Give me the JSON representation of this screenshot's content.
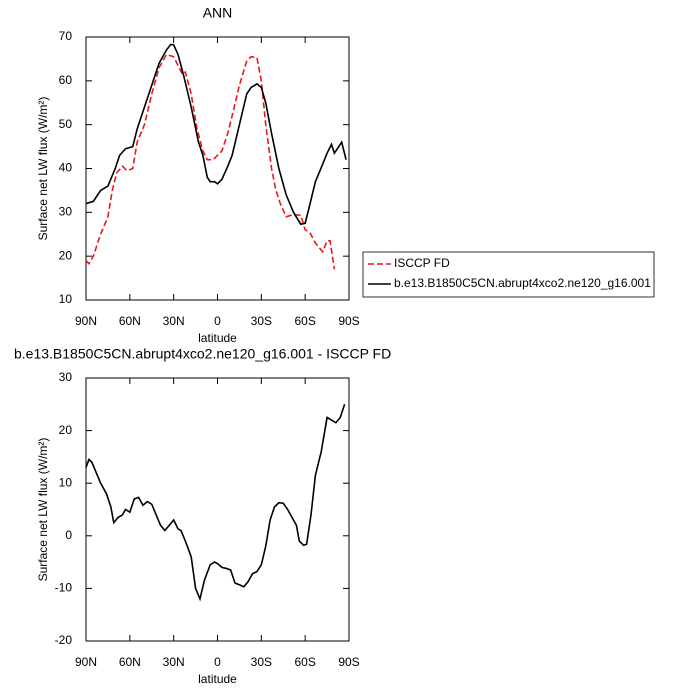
{
  "chart_data": [
    {
      "type": "line",
      "title": "ANN",
      "xlabel": "latitude",
      "ylabel": "Surface net LW flux (W/m²)",
      "xlim": [
        90,
        -90
      ],
      "xticks": [
        {
          "value": 90,
          "label": "90N"
        },
        {
          "value": 60,
          "label": "60N"
        },
        {
          "value": 30,
          "label": "30N"
        },
        0,
        {
          "value": -30,
          "label": "30S"
        },
        {
          "value": -60,
          "label": "60S"
        },
        {
          "value": -90,
          "label": "90S"
        }
      ],
      "ylim": [
        10,
        70
      ],
      "yticks": [
        10,
        20,
        30,
        40,
        50,
        60,
        70
      ],
      "legend": "outside-right",
      "series": [
        {
          "name": "ISCCP FD",
          "color": "#e8191c",
          "line_style": "dashed",
          "x": [
            90,
            88,
            85,
            80,
            75,
            72,
            69,
            65,
            62,
            58,
            55,
            50,
            45,
            40,
            35,
            30,
            27,
            24,
            22,
            18,
            14,
            10,
            7,
            3,
            0,
            -3,
            -7,
            -10,
            -15,
            -20,
            -23,
            -27,
            -30,
            -33,
            -37,
            -40,
            -43,
            -47,
            -52,
            -57,
            -60,
            -63,
            -67,
            -72,
            -75,
            -77,
            -80
          ],
          "values": [
            19,
            18.3,
            20,
            25,
            29,
            35,
            39,
            40.5,
            39.5,
            40,
            46,
            50,
            57,
            63,
            66,
            65.5,
            63.5,
            61.5,
            62,
            57,
            49,
            44,
            42,
            42,
            43,
            44,
            48,
            52,
            59,
            64.5,
            65.5,
            65.3,
            60,
            50,
            40,
            35,
            32,
            29,
            29.5,
            29.3,
            26,
            25.5,
            23,
            21,
            23.5,
            23.5,
            17
          ]
        },
        {
          "name": "b.e13.B1850C5CN.abrupt4xco2.ne120_g16.001",
          "color": "#000000",
          "line_style": "solid",
          "x": [
            90,
            85,
            80,
            75,
            70,
            67,
            63,
            58,
            55,
            50,
            45,
            40,
            35,
            32,
            30,
            27,
            23,
            18,
            13,
            10,
            7,
            5,
            2,
            0,
            -3,
            -7,
            -10,
            -15,
            -20,
            -23,
            -27,
            -30,
            -33,
            -37,
            -42,
            -47,
            -52,
            -57,
            -60,
            -63,
            -67,
            -72,
            -75,
            -78,
            -80,
            -83,
            -85,
            -88
          ],
          "values": [
            32,
            32.5,
            35,
            36,
            40,
            43,
            44.5,
            45,
            49,
            54,
            59,
            64,
            67,
            68.3,
            68.2,
            66,
            61,
            54,
            46,
            43,
            38,
            37,
            37,
            36.5,
            37.5,
            40.5,
            43,
            50,
            57,
            58.5,
            59.3,
            58.5,
            55,
            48,
            40,
            34,
            30,
            27.3,
            27.5,
            31.5,
            37,
            41,
            43.5,
            45.5,
            43.5,
            45,
            46,
            42
          ]
        }
      ]
    },
    {
      "type": "line",
      "title": "b.e13.B1850C5CN.abrupt4xco2.ne120_g16.001 - ISCCP FD",
      "xlabel": "latitude",
      "ylabel": "Surface net LW flux (W/m²)",
      "xlim": [
        90,
        -90
      ],
      "xticks": [
        {
          "value": 90,
          "label": "90N"
        },
        {
          "value": 60,
          "label": "60N"
        },
        {
          "value": 30,
          "label": "30N"
        },
        0,
        {
          "value": -30,
          "label": "30S"
        },
        {
          "value": -60,
          "label": "60S"
        },
        {
          "value": -90,
          "label": "90S"
        }
      ],
      "ylim": [
        -20,
        30
      ],
      "yticks": [
        -20,
        -10,
        0,
        10,
        20,
        30
      ],
      "series": [
        {
          "color": "#000000",
          "line_style": "solid",
          "x": [
            90,
            88,
            86,
            83,
            80,
            76,
            73,
            71,
            68,
            65,
            63,
            60,
            57,
            54,
            51,
            48,
            45,
            42,
            39,
            36,
            33,
            30,
            27,
            25,
            22,
            18,
            15,
            12,
            9,
            5,
            2,
            0,
            -3,
            -6,
            -9,
            -12,
            -15,
            -18,
            -21,
            -24,
            -27,
            -30,
            -33,
            -36,
            -39,
            -42,
            -45,
            -48,
            -52,
            -54,
            -56,
            -59,
            -61,
            -64,
            -67,
            -71,
            -75,
            -78,
            -81,
            -84,
            -87
          ],
          "values": [
            13,
            14.5,
            14,
            12,
            10,
            8,
            5.5,
            2.5,
            3.5,
            4,
            5,
            4.5,
            7,
            7.3,
            5.8,
            6.5,
            6,
            4,
            2,
            1,
            2,
            3,
            1.3,
            1,
            -1,
            -4,
            -10,
            -12,
            -8.5,
            -5.5,
            -5,
            -5.3,
            -6,
            -6.2,
            -6.5,
            -9,
            -9.3,
            -9.7,
            -8.7,
            -7.2,
            -6.8,
            -5.5,
            -2,
            3,
            5.5,
            6.3,
            6.2,
            5,
            3,
            2,
            -1,
            -1.8,
            -1.6,
            4,
            11.5,
            16,
            22.5,
            22,
            21.5,
            22.5,
            25
          ]
        }
      ]
    }
  ]
}
